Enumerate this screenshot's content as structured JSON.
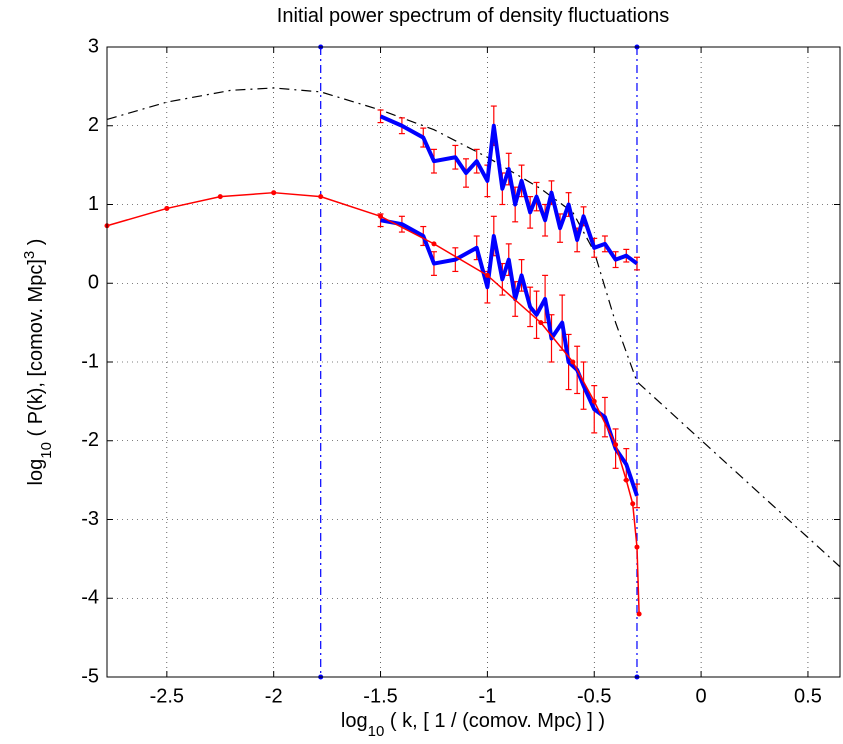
{
  "chart_data": {
    "type": "line",
    "title": "Initial power spectrum of density fluctuations",
    "xlabel": [
      {
        "text": "log"
      },
      {
        "text": "10",
        "shift": "sub"
      },
      {
        "text": " ( k, [ 1 / (comov. Mpc) ] )"
      }
    ],
    "ylabel": [
      {
        "text": "log"
      },
      {
        "text": "10",
        "shift": "sub"
      },
      {
        "text": " ( P(k), [comov. Mpc]"
      },
      {
        "text": "3",
        "shift": "super"
      },
      {
        "text": " )"
      }
    ],
    "xlim": [
      -2.78,
      0.65
    ],
    "ylim": [
      -5,
      3
    ],
    "xticks": [
      -2.5,
      -2,
      -1.5,
      -1,
      -0.5,
      0,
      0.5
    ],
    "yticks": [
      -5,
      -4,
      -3,
      -2,
      -1,
      0,
      1,
      2,
      3
    ],
    "grid": true,
    "vlines": {
      "color": "#0000ff",
      "values": [
        -1.78,
        -0.3
      ]
    },
    "series": [
      {
        "color": "#000000",
        "style": "dashdot",
        "width": 1.2,
        "markers": false,
        "x": [
          -2.78,
          -2.5,
          -2.2,
          -2,
          -1.78,
          -1.5,
          -1.25,
          -1,
          -0.75,
          -0.6,
          -0.5,
          -0.4,
          -0.3,
          0.65
        ],
        "values": [
          2.08,
          2.3,
          2.45,
          2.48,
          2.43,
          2.2,
          1.95,
          1.6,
          1.2,
          0.9,
          0.4,
          -0.5,
          -1.25,
          -3.6
        ]
      },
      {
        "color": "#0000ff",
        "style": "solid",
        "width": 4,
        "markers": false,
        "error_color": "#ff0000",
        "x": [
          -1.5,
          -1.4,
          -1.3,
          -1.25,
          -1.15,
          -1.1,
          -1.05,
          -1.0,
          -0.97,
          -0.93,
          -0.9,
          -0.87,
          -0.84,
          -0.8,
          -0.77,
          -0.73,
          -0.7,
          -0.66,
          -0.62,
          -0.58,
          -0.55,
          -0.5,
          -0.45,
          -0.4,
          -0.35,
          -0.3
        ],
        "values": [
          2.12,
          2.0,
          1.85,
          1.55,
          1.6,
          1.4,
          1.55,
          1.3,
          2.0,
          1.2,
          1.45,
          1.0,
          1.3,
          0.9,
          1.1,
          0.8,
          1.15,
          0.7,
          1.0,
          0.55,
          0.85,
          0.45,
          0.5,
          0.3,
          0.35,
          0.25
        ],
        "errors": [
          0.08,
          0.1,
          0.12,
          0.15,
          0.15,
          0.18,
          0.15,
          0.2,
          0.25,
          0.2,
          0.2,
          0.22,
          0.2,
          0.2,
          0.18,
          0.2,
          0.15,
          0.18,
          0.15,
          0.15,
          0.12,
          0.12,
          0.1,
          0.1,
          0.08,
          0.08
        ]
      },
      {
        "color": "#0000ff",
        "style": "solid",
        "width": 4,
        "markers": false,
        "error_color": "#ff0000",
        "x": [
          -1.5,
          -1.4,
          -1.3,
          -1.25,
          -1.15,
          -1.05,
          -1.0,
          -0.97,
          -0.93,
          -0.9,
          -0.87,
          -0.84,
          -0.8,
          -0.77,
          -0.73,
          -0.7,
          -0.65,
          -0.62,
          -0.58,
          -0.55,
          -0.5,
          -0.45,
          -0.4,
          -0.35,
          -0.3
        ],
        "values": [
          0.8,
          0.75,
          0.6,
          0.25,
          0.3,
          0.45,
          -0.05,
          0.6,
          0.05,
          0.3,
          -0.2,
          0.1,
          -0.3,
          -0.4,
          -0.2,
          -0.7,
          -0.5,
          -1.0,
          -1.1,
          -1.3,
          -1.6,
          -1.7,
          -2.1,
          -2.3,
          -2.7
        ],
        "errors": [
          0.08,
          0.1,
          0.12,
          0.15,
          0.15,
          0.15,
          0.2,
          0.25,
          0.2,
          0.2,
          0.22,
          0.2,
          0.25,
          0.3,
          0.3,
          0.3,
          0.35,
          0.35,
          0.3,
          0.3,
          0.3,
          0.25,
          0.25,
          0.2,
          0.15
        ]
      },
      {
        "color": "#ff0000",
        "style": "solid",
        "width": 1.5,
        "markers": true,
        "x": [
          -2.78,
          -2.5,
          -2.25,
          -2,
          -1.78,
          -1.5,
          -1.25,
          -1,
          -0.75,
          -0.6,
          -0.5,
          -0.4,
          -0.35,
          -0.32,
          -0.3,
          -0.29
        ],
        "values": [
          0.73,
          0.95,
          1.1,
          1.15,
          1.1,
          0.85,
          0.5,
          0.1,
          -0.5,
          -1.0,
          -1.5,
          -2.05,
          -2.5,
          -2.8,
          -3.35,
          -4.2
        ]
      }
    ]
  }
}
